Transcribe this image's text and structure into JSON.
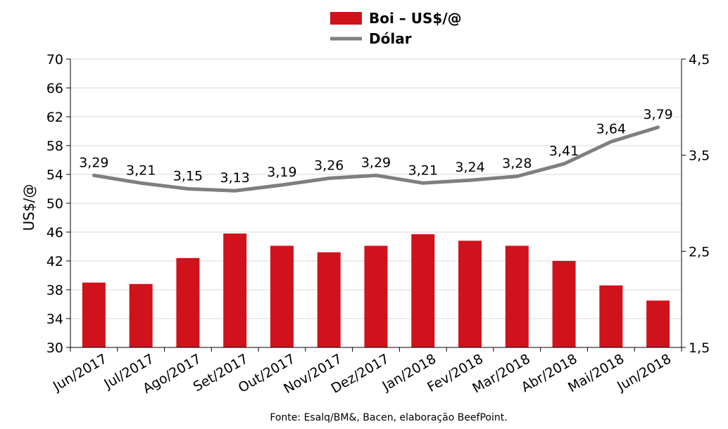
{
  "chart_data": {
    "type": "bar",
    "categories": [
      "Jun/2017",
      "Jul/2017",
      "Ago/2017",
      "Set/2017",
      "Out/2017",
      "Nov/2017",
      "Dez/2017",
      "Jan/2018",
      "Fev/2018",
      "Mar/2018",
      "Abr/2018",
      "Mai/2018",
      "Jun/2018"
    ],
    "series": [
      {
        "name": "Boi – US$/@",
        "type": "bar",
        "axis": "left",
        "color": "#d0121c",
        "values": [
          39.0,
          38.8,
          42.4,
          45.8,
          44.1,
          43.2,
          44.1,
          45.7,
          44.8,
          44.1,
          42.0,
          38.6,
          36.5
        ]
      },
      {
        "name": "Dólar",
        "type": "line",
        "axis": "right",
        "color": "#7f7f7f",
        "values": [
          3.29,
          3.21,
          3.15,
          3.13,
          3.19,
          3.26,
          3.29,
          3.21,
          3.24,
          3.28,
          3.41,
          3.64,
          3.79
        ],
        "data_labels": [
          "3,29",
          "3,21",
          "3,15",
          "3,13",
          "3,19",
          "3,26",
          "3,29",
          "3,21",
          "3,24",
          "3,28",
          "3,41",
          "3,64",
          "3,79"
        ]
      }
    ],
    "ylabel": "US$/@",
    "ylim": [
      30,
      70
    ],
    "yticks": [
      "30",
      "34",
      "38",
      "42",
      "46",
      "50",
      "54",
      "58",
      "62",
      "66",
      "70"
    ],
    "y2lim": [
      1.5,
      4.5
    ],
    "y2ticks": [
      "1,5",
      "2,5",
      "3,5",
      "4,5"
    ],
    "grid": "horizontal",
    "legend_position": "top-center",
    "source": "Fonte: Esalq/BM&, Bacen, elaboração BeefPoint."
  }
}
